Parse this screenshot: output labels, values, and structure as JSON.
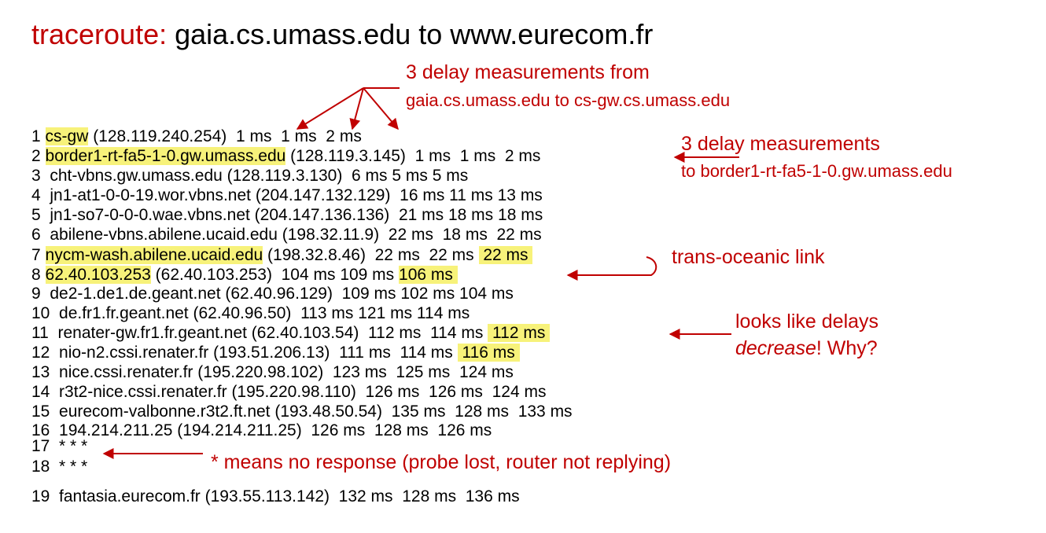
{
  "title": {
    "keyword": "traceroute:",
    "rest": " gaia.cs.umass.edu to www.eurecom.fr"
  },
  "annotations": {
    "top_line1": "3 delay measurements from",
    "top_line2": "gaia.cs.umass.edu to cs-gw.cs.umass.edu",
    "right_line1": "3 delay measurements",
    "right_line2": "to border1-rt-fa5-1-0.gw.umass.edu",
    "transoceanic": "trans-oceanic link",
    "decrease_a": "looks like delays",
    "decrease_b": "decrease",
    "decrease_c": "! Why?",
    "star_note": "* means no response (probe lost, router not replying)"
  },
  "rows": [
    {
      "n": "1",
      "segs": [
        {
          "t": " "
        },
        {
          "t": "cs-gw",
          "hl": true
        },
        {
          "t": " (128.119.240.254)  1 ms  1 ms  2 ms"
        }
      ]
    },
    {
      "n": "2",
      "segs": [
        {
          "t": " "
        },
        {
          "t": "border1-rt-fa5-1-0.gw.umass.edu",
          "hl": true
        },
        {
          "t": " (128.119.3.145)  1 ms  1 ms  2 ms"
        }
      ]
    },
    {
      "n": "3",
      "segs": [
        {
          "t": "  cht-vbns.gw.umass.edu (128.119.3.130)  6 ms 5 ms 5 ms"
        }
      ]
    },
    {
      "n": "4",
      "segs": [
        {
          "t": "  jn1-at1-0-0-19.wor.vbns.net (204.147.132.129)  16 ms 11 ms 13 ms"
        }
      ]
    },
    {
      "n": "5",
      "segs": [
        {
          "t": "  jn1-so7-0-0-0.wae.vbns.net (204.147.136.136)  21 ms 18 ms 18 ms"
        }
      ]
    },
    {
      "n": "6",
      "segs": [
        {
          "t": "  abilene-vbns.abilene.ucaid.edu (198.32.11.9)  22 ms  18 ms  22 ms"
        }
      ]
    },
    {
      "n": "7",
      "segs": [
        {
          "t": " "
        },
        {
          "t": "nycm-wash.abilene.ucaid.edu",
          "hl": true
        },
        {
          "t": " (198.32.8.46)  22 ms  22 ms "
        },
        {
          "t": " 22 ms ",
          "hl": true
        }
      ]
    },
    {
      "n": "8",
      "segs": [
        {
          "t": " "
        },
        {
          "t": "62.40.103.253",
          "hl": true
        },
        {
          "t": " (62.40.103.253)  104 ms 109 ms "
        },
        {
          "t": "106 ms ",
          "hl": true
        }
      ]
    },
    {
      "n": "9",
      "segs": [
        {
          "t": "  de2-1.de1.de.geant.net (62.40.96.129)  109 ms 102 ms 104 ms"
        }
      ]
    },
    {
      "n": "10",
      "segs": [
        {
          "t": "  de.fr1.fr.geant.net (62.40.96.50)  113 ms 121 ms 114 ms"
        }
      ]
    },
    {
      "n": "11",
      "segs": [
        {
          "t": "  renater-gw.fr1.fr.geant.net (62.40.103.54)  112 ms  114 ms "
        },
        {
          "t": " 112 ms ",
          "hl": true
        }
      ]
    },
    {
      "n": "12",
      "segs": [
        {
          "t": "  nio-n2.cssi.renater.fr (193.51.206.13)  111 ms  114 ms "
        },
        {
          "t": " 116 ms ",
          "hl": true
        }
      ]
    },
    {
      "n": "13",
      "segs": [
        {
          "t": "  nice.cssi.renater.fr (195.220.98.102)  123 ms  125 ms  124 ms"
        }
      ]
    },
    {
      "n": "14",
      "segs": [
        {
          "t": "  r3t2-nice.cssi.renater.fr (195.220.98.110)  126 ms  126 ms  124 ms"
        }
      ]
    },
    {
      "n": "15",
      "segs": [
        {
          "t": "  eurecom-valbonne.r3t2.ft.net (193.48.50.54)  135 ms  128 ms  133 ms"
        }
      ]
    },
    {
      "n": "16",
      "segs": [
        {
          "t": "  194.214.211.25 (194.214.211.25)  126 ms  128 ms  126 ms"
        }
      ]
    },
    {
      "n": "17",
      "segs": [
        {
          "t": "  * * *"
        }
      ]
    },
    {
      "n": "18",
      "segs": [
        {
          "t": "  * * *"
        }
      ]
    },
    {
      "n": "19",
      "segs": [
        {
          "t": "  fantasia.eurecom.fr (193.55.113.142)  132 ms  128 ms  136 ms"
        }
      ]
    }
  ]
}
